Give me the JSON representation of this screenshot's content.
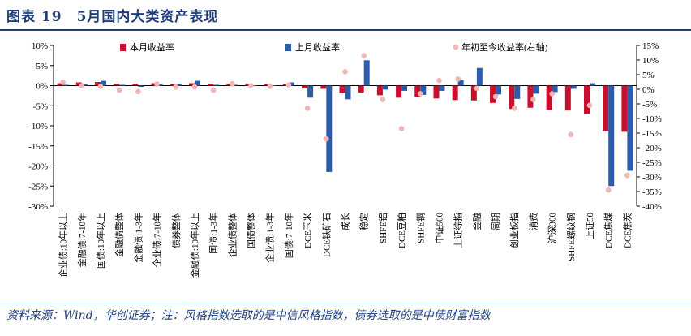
{
  "header": {
    "title": "图表 19　5月国内大类资产表现"
  },
  "footer": {
    "source": "资料来源：Wind，华创证券；注：风格指数选取的是中信风格指数，债券选取的是中债财富指数"
  },
  "colors": {
    "series1": "#c8102e",
    "series2": "#2e5da8",
    "series3": "#f2b6b6",
    "title": "#1f3e7a"
  },
  "chart_data": {
    "type": "bar",
    "title": "5月国内大类资产表现",
    "categories": [
      "企业债:10年以上",
      "金融债:7-10年",
      "国债:10年以上",
      "金融债整体",
      "金融债:1-3年",
      "企业债:7-10年",
      "债券整体",
      "金融债:10年以上",
      "国债:1-3年",
      "企业债整体",
      "国债整体",
      "企业债:1-3年",
      "国债:7-10年",
      "DCE玉米",
      "DCE铁矿石",
      "成长",
      "稳定",
      "SHFE铝",
      "DCE豆粕",
      "SHFE铜",
      "中证500",
      "上证综指",
      "金融",
      "周期",
      "创业板指",
      "消费",
      "沪深300",
      "SHFE螺纹钢",
      "上证50",
      "DCE焦煤",
      "DCE焦炭"
    ],
    "series": [
      {
        "name": "本月收益率",
        "axis": "left",
        "kind": "bar",
        "values": [
          0.6,
          0.8,
          0.9,
          0.5,
          0.4,
          0.6,
          0.4,
          0.6,
          0.4,
          0.4,
          0.4,
          0.3,
          0.3,
          -0.6,
          -0.8,
          -1.8,
          -1.7,
          -2.4,
          -3.0,
          -2.8,
          -3.2,
          -3.6,
          -3.7,
          -4.3,
          -5.8,
          -5.5,
          -6.0,
          -6.2,
          -7.0,
          -11.3,
          -11.5
        ]
      },
      {
        "name": "上月收益率",
        "axis": "left",
        "kind": "bar",
        "values": [
          0.2,
          0.3,
          1.2,
          0.2,
          -0.3,
          0.4,
          0.4,
          1.2,
          0.2,
          0.2,
          0.1,
          0.1,
          0.8,
          -3.0,
          -21.5,
          -3.4,
          6.3,
          -1.0,
          -1.3,
          -2.3,
          -1.3,
          1.4,
          4.4,
          -2.2,
          -3.3,
          -2.0,
          -1.6,
          -0.8,
          0.6,
          -25.0,
          -21.2
        ]
      },
      {
        "name": "年初至今收益率(右轴)",
        "axis": "right",
        "kind": "scatter",
        "values": [
          2.4,
          1.2,
          1.0,
          -0.3,
          -0.8,
          1.8,
          0.8,
          0.8,
          -0.3,
          1.9,
          1.2,
          1.0,
          1.5,
          -6.5,
          -17.0,
          6.0,
          11.5,
          -3.5,
          -13.5,
          -1.5,
          3.0,
          3.5,
          0.3,
          -2.5,
          -6.5,
          -3.5,
          -1.5,
          -15.5,
          -5.5,
          -34.5,
          -29.5
        ]
      }
    ],
    "left_axis": {
      "min": -30,
      "max": 10,
      "step": 5,
      "unit": "%",
      "tick_labels": [
        "10%",
        "5%",
        "0%",
        "-5%",
        "-10%",
        "-15%",
        "-20%",
        "-25%",
        "-30%"
      ]
    },
    "right_axis": {
      "min": -40,
      "max": 15,
      "step": 5,
      "unit": "%",
      "tick_labels": [
        "15%",
        "10%",
        "5%",
        "0%",
        "-5%",
        "-10%",
        "-15%",
        "-20%",
        "-25%",
        "-30%",
        "-35%",
        "-40%"
      ]
    },
    "legend_position": "top",
    "grid": false
  }
}
